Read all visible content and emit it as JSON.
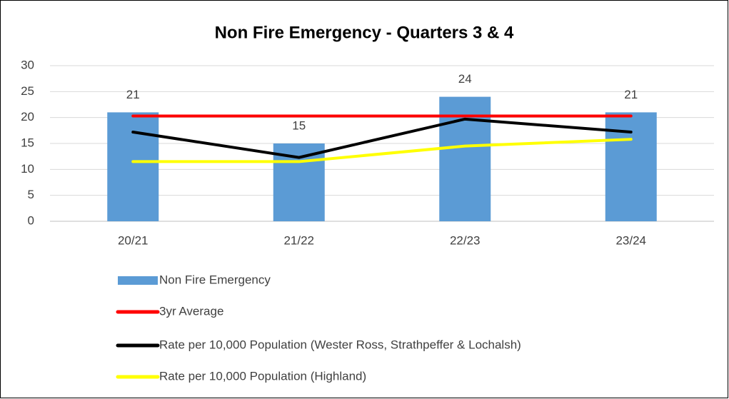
{
  "chart_data": {
    "type": "bar",
    "title": "Non Fire Emergency - Quarters 3 & 4",
    "categories": [
      "20/21",
      "21/22",
      "22/23",
      "23/24"
    ],
    "series": [
      {
        "name": "Non Fire Emergency",
        "type": "bar",
        "color": "#5b9bd5",
        "values": [
          21,
          15,
          24,
          21
        ],
        "data_labels": true
      },
      {
        "name": "3yr Average",
        "type": "line",
        "color": "#ff0000",
        "values": [
          20.3,
          20.3,
          20.3,
          20.3
        ]
      },
      {
        "name": "Rate per 10,000 Population (Wester Ross, Strathpeffer & Lochalsh)",
        "type": "line",
        "color": "#000000",
        "values": [
          17.2,
          12.3,
          19.7,
          17.2
        ]
      },
      {
        "name": "Rate per 10,000 Population (Highland)",
        "type": "line",
        "color": "#ffff00",
        "values": [
          11.5,
          11.5,
          14.5,
          15.8
        ]
      }
    ],
    "ylim": [
      0,
      30
    ],
    "yticks": [
      0,
      5,
      10,
      15,
      20,
      25,
      30
    ],
    "grid": true,
    "legend": "bottom"
  }
}
